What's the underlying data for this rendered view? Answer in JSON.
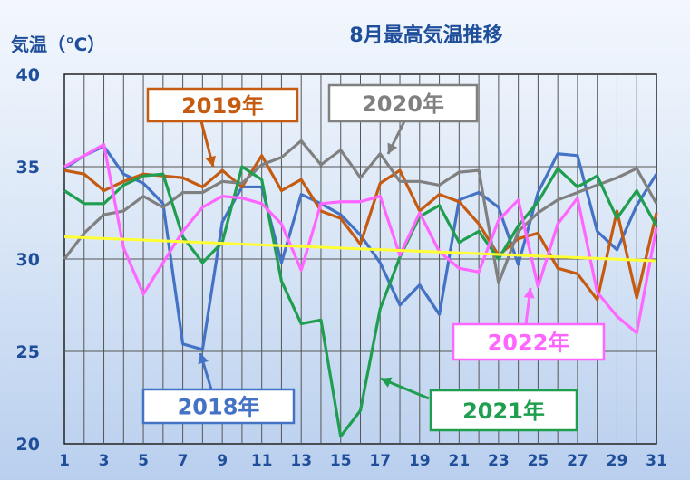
{
  "chart_data": {
    "type": "line",
    "title": "8月最高気温推移",
    "ylabel": "気温（℃）",
    "xlabel": "",
    "x": [
      1,
      2,
      3,
      4,
      5,
      6,
      7,
      8,
      9,
      10,
      11,
      12,
      13,
      14,
      15,
      16,
      17,
      18,
      19,
      20,
      21,
      22,
      23,
      24,
      25,
      26,
      27,
      28,
      29,
      30,
      31
    ],
    "xticks": [
      "1",
      "3",
      "5",
      "7",
      "9",
      "11",
      "13",
      "15",
      "17",
      "19",
      "21",
      "23",
      "25",
      "27",
      "29",
      "31"
    ],
    "yticks": [
      "20",
      "25",
      "30",
      "35",
      "40"
    ],
    "ylim": [
      20,
      40
    ],
    "xlim": [
      1,
      31
    ],
    "grid": true,
    "series": [
      {
        "name": "2018年",
        "color": "#4472c4",
        "values": [
          34.9,
          35.6,
          36.1,
          34.6,
          34.1,
          33.0,
          25.4,
          25.1,
          32.0,
          33.9,
          33.9,
          29.8,
          33.5,
          33.0,
          32.4,
          31.3,
          29.8,
          27.5,
          28.6,
          27.0,
          33.2,
          33.6,
          32.8,
          29.7,
          33.6,
          35.7,
          35.6,
          31.5,
          30.5,
          32.9,
          34.6
        ]
      },
      {
        "name": "2019年",
        "color": "#c55a11",
        "values": [
          34.8,
          34.6,
          33.7,
          34.2,
          34.6,
          34.5,
          34.4,
          33.9,
          34.8,
          33.9,
          35.6,
          33.7,
          34.3,
          32.6,
          32.2,
          30.8,
          34.1,
          34.8,
          32.6,
          33.5,
          33.1,
          31.9,
          30.2,
          31.1,
          31.4,
          29.5,
          29.2,
          27.8,
          32.6,
          27.9,
          32.5
        ]
      },
      {
        "name": "2020年",
        "color": "#808080",
        "values": [
          30.0,
          31.4,
          32.4,
          32.6,
          33.4,
          32.8,
          33.6,
          33.6,
          34.2,
          34.1,
          35.1,
          35.5,
          36.4,
          35.1,
          35.9,
          34.4,
          35.7,
          34.2,
          34.2,
          34.0,
          34.7,
          34.8,
          28.7,
          31.5,
          32.5,
          33.2,
          33.6,
          34.0,
          34.4,
          34.9,
          33.0
        ]
      },
      {
        "name": "2021年",
        "color": "#1e9e4e",
        "values": [
          33.7,
          33.0,
          33.0,
          34.0,
          34.5,
          34.6,
          31.2,
          29.8,
          30.9,
          35.0,
          34.3,
          28.8,
          26.5,
          26.7,
          20.4,
          21.8,
          27.3,
          30.1,
          32.3,
          32.9,
          30.9,
          31.5,
          30.0,
          31.8,
          33.1,
          34.9,
          33.9,
          34.5,
          32.2,
          33.7,
          31.8
        ]
      },
      {
        "name": "2022年",
        "color": "#ff66ff",
        "values": [
          35.0,
          35.6,
          36.2,
          30.6,
          28.1,
          29.8,
          31.5,
          32.8,
          33.4,
          33.3,
          33.0,
          31.9,
          29.4,
          33.0,
          33.1,
          33.1,
          33.4,
          30.2,
          32.5,
          30.4,
          29.5,
          29.3,
          32.1,
          33.2,
          28.5,
          31.9,
          33.3,
          28.2,
          26.9,
          26.0,
          31.7
        ]
      },
      {
        "name": "trend",
        "color": "#ffff33",
        "values_linear": [
          31.2,
          29.9
        ]
      }
    ],
    "labels": [
      "2019年",
      "2020年",
      "2018年",
      "2021年",
      "2022年"
    ]
  }
}
